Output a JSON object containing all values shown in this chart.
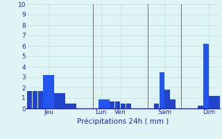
{
  "values": [
    1.7,
    1.7,
    1.7,
    3.2,
    3.2,
    1.5,
    1.5,
    0.5,
    0.5,
    0,
    0,
    0,
    0,
    0.9,
    0.9,
    0.7,
    0.7,
    0.5,
    0.5,
    0,
    0,
    0,
    0,
    0.5,
    3.5,
    1.8,
    0.9,
    0,
    0,
    0,
    0,
    0.3,
    6.2,
    1.2,
    1.2
  ],
  "bar_colors": [
    "#2244cc",
    "#2244cc",
    "#2244cc",
    "#2255ee",
    "#2255ee",
    "#2244cc",
    "#2244cc",
    "#2244cc",
    "#2244cc",
    "#2244cc",
    "#2244cc",
    "#2244cc",
    "#2244cc",
    "#2255ee",
    "#2255ee",
    "#2244cc",
    "#2244cc",
    "#2244cc",
    "#2244cc",
    "#2244cc",
    "#2244cc",
    "#2244cc",
    "#2244cc",
    "#2244cc",
    "#2255ee",
    "#2244cc",
    "#2244cc",
    "#2244cc",
    "#2244cc",
    "#2244cc",
    "#2244cc",
    "#2244cc",
    "#2255ee",
    "#2244cc",
    "#2244cc"
  ],
  "background_color": "#dff5f5",
  "grid_color": "#bbdddd",
  "text_color": "#2222bb",
  "xlabel": "Précipitations 24h ( mm )",
  "ylim": [
    0,
    10
  ],
  "yticks": [
    0,
    1,
    2,
    3,
    4,
    5,
    6,
    7,
    8,
    9,
    10
  ],
  "day_labels": [
    "Jeu",
    "Lun",
    "Ven",
    "Sam",
    "Dim"
  ],
  "day_positions": [
    3.5,
    13,
    16.5,
    24.5,
    32.5
  ],
  "vline_positions": [
    11.5,
    21.5,
    27.5
  ],
  "vline_color": "#777777",
  "font_size": 6.5,
  "xlabel_font_size": 7.5
}
